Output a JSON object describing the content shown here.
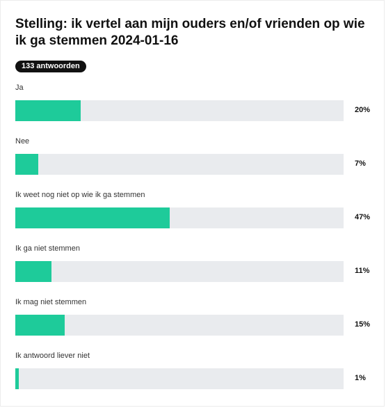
{
  "title": "Stelling: ik vertel aan mijn ouders en/of vrienden op wie ik ga stemmen 2024-01-16",
  "badge": "133 antwoorden",
  "colors": {
    "fill": "#1ecb9a",
    "track": "#e9ebee",
    "badge_bg": "#111111"
  },
  "chart_data": {
    "type": "bar",
    "orientation": "horizontal",
    "title": "Stelling: ik vertel aan mijn ouders en/of vrienden op wie ik ga stemmen 2024-01-16",
    "xlim": [
      0,
      100
    ],
    "grid": false,
    "categories": [
      "Ja",
      "Nee",
      "Ik weet nog niet op wie ik ga stemmen",
      "Ik ga niet stemmen",
      "Ik mag niet stemmen",
      "Ik antwoord liever niet"
    ],
    "values": [
      20,
      7,
      47,
      11,
      15,
      1
    ],
    "value_labels": [
      "20%",
      "7%",
      "47%",
      "11%",
      "15%",
      "1%"
    ]
  }
}
